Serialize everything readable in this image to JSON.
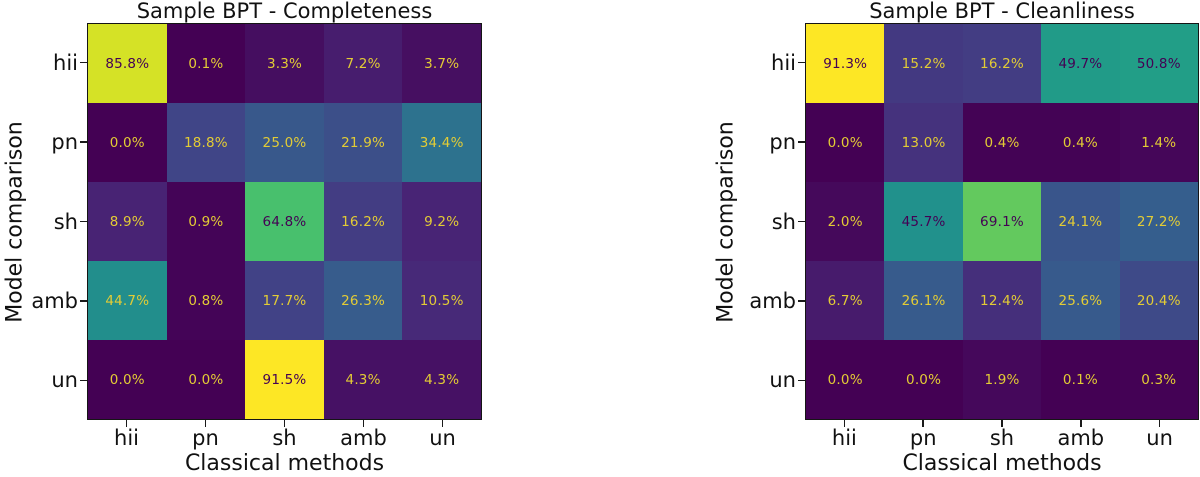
{
  "page": {
    "background": "#ffffff"
  },
  "style": {
    "cell_text_light": "#e3cc35",
    "cell_text_dark": "#440154",
    "axis_text_color": "#111111",
    "spine_color": "#151515",
    "viridis_stops": [
      "#440154",
      "#482475",
      "#414487",
      "#355f8d",
      "#2a788e",
      "#21918c",
      "#22a884",
      "#44bf70",
      "#7ad151",
      "#bddf26",
      "#fde725"
    ]
  },
  "chart_data": [
    {
      "type": "heatmap",
      "title": "Sample BPT - Completeness",
      "xlabel": "Classical methods",
      "ylabel": "Model comparison",
      "x_tick_labels": [
        "hii",
        "pn",
        "sh",
        "amb",
        "un"
      ],
      "y_tick_labels": [
        "hii",
        "pn",
        "sh",
        "amb",
        "un"
      ],
      "rows": [
        [
          85.8,
          0.1,
          3.3,
          7.2,
          3.7
        ],
        [
          0.0,
          18.8,
          25.0,
          21.9,
          34.4
        ],
        [
          8.9,
          0.9,
          64.8,
          16.2,
          9.2
        ],
        [
          44.7,
          0.8,
          17.7,
          26.3,
          10.5
        ],
        [
          0.0,
          0.0,
          91.5,
          4.3,
          4.3
        ]
      ],
      "cell_label_suffix": "%",
      "cell_label_decimals": 1,
      "colormap": "viridis",
      "vmin": 0,
      "vmax": 91.5,
      "annotation_rule": "dark text when value > vmax/2, else yellow text",
      "grid": false,
      "legend": "none"
    },
    {
      "type": "heatmap",
      "title": "Sample BPT - Cleanliness",
      "xlabel": "Classical methods",
      "ylabel": "Model comparison",
      "x_tick_labels": [
        "hii",
        "pn",
        "sh",
        "amb",
        "un"
      ],
      "y_tick_labels": [
        "hii",
        "pn",
        "sh",
        "amb",
        "un"
      ],
      "rows": [
        [
          91.3,
          15.2,
          16.2,
          49.7,
          50.8
        ],
        [
          0.0,
          13.0,
          0.4,
          0.4,
          1.4
        ],
        [
          2.0,
          45.7,
          69.1,
          24.1,
          27.2
        ],
        [
          6.7,
          26.1,
          12.4,
          25.6,
          20.4
        ],
        [
          0.0,
          0.0,
          1.9,
          0.1,
          0.3
        ]
      ],
      "cell_label_suffix": "%",
      "cell_label_decimals": 1,
      "colormap": "viridis",
      "vmin": 0,
      "vmax": 91.3,
      "annotation_rule": "dark text when value > vmax/2, else yellow text",
      "grid": false,
      "legend": "none"
    }
  ]
}
